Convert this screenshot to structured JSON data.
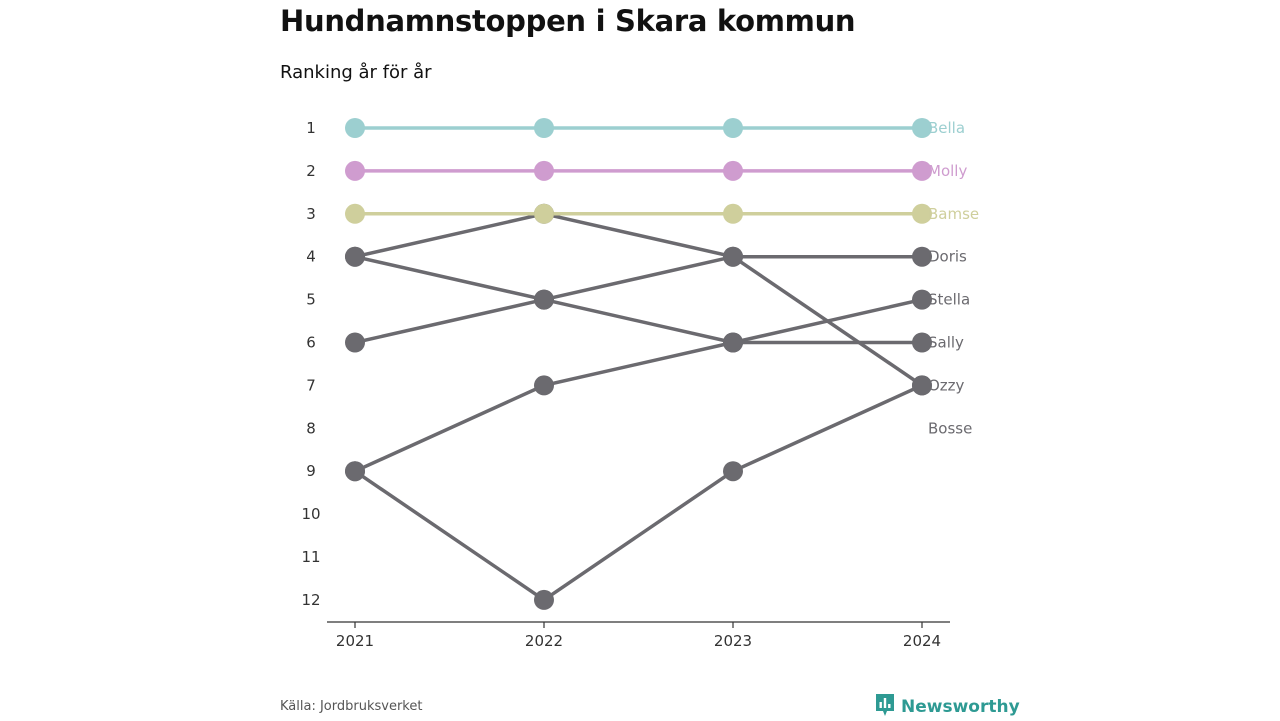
{
  "title": "Hundnamnstoppen i Skara kommun",
  "subtitle": "Ranking år för år",
  "source": "Källa: Jordbruksverket",
  "brand": {
    "name": "Newsworthy",
    "icon": "bar-chart-flag-icon",
    "color": "#2e9a93"
  },
  "chart_data": {
    "type": "line",
    "x": [
      "2021",
      "2022",
      "2023",
      "2024"
    ],
    "y_ticks": [
      1,
      2,
      3,
      4,
      5,
      6,
      7,
      8,
      9,
      10,
      11,
      12
    ],
    "y_reversed": true,
    "ylim": [
      1,
      12
    ],
    "grid": false,
    "legend": "end-labels",
    "series": [
      {
        "name": "Bella",
        "color": "#9ccfd0",
        "values": [
          1,
          1,
          1,
          1
        ]
      },
      {
        "name": "Molly",
        "color": "#cf9ccf",
        "values": [
          2,
          2,
          2,
          2
        ]
      },
      {
        "name": "Bamse",
        "color": "#cfcf9c",
        "values": [
          3,
          3,
          3,
          3
        ]
      },
      {
        "name": "Doris",
        "color": "#6b6a6f",
        "values": [
          4,
          5,
          4,
          4
        ]
      },
      {
        "name": "Stella",
        "color": "#6b6a6f",
        "values": [
          6,
          5,
          6,
          5
        ]
      },
      {
        "name": "Sally",
        "color": "#6b6a6f",
        "values": [
          9,
          7,
          6,
          6
        ]
      },
      {
        "name": "Ozzy",
        "color": "#6b6a6f",
        "values": [
          4,
          3,
          4,
          7
        ]
      },
      {
        "name": "Bosse",
        "color": "#6b6a6f",
        "values": [
          9,
          12,
          9,
          7
        ]
      }
    ],
    "end_label_positions": [
      "Bella",
      "Molly",
      "Bamse",
      "Doris",
      "Stella",
      "Sally",
      "Ozzy",
      "Bosse"
    ]
  }
}
